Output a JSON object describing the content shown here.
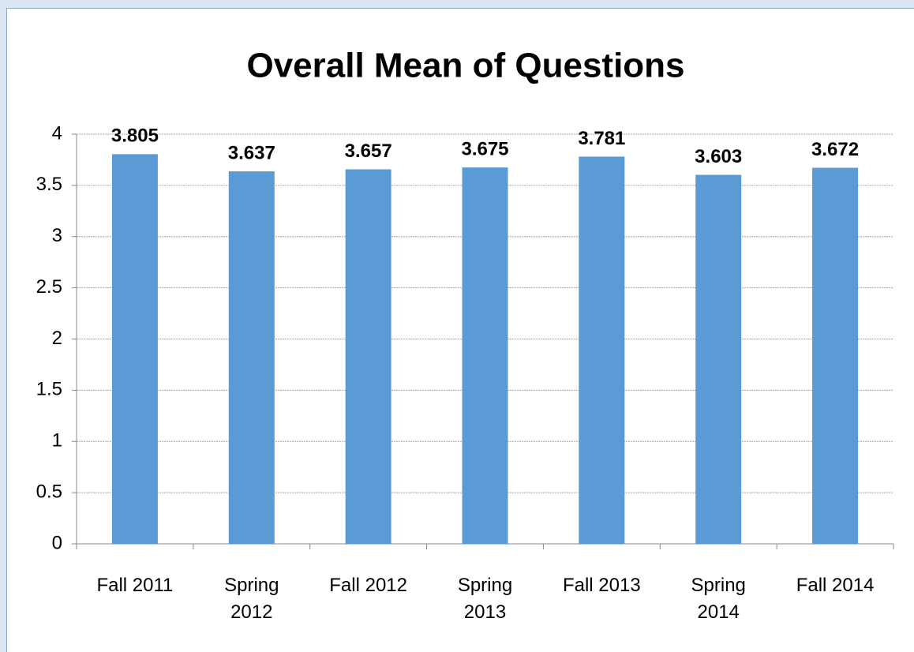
{
  "chart_data": {
    "type": "bar",
    "title": "Overall Mean of Questions",
    "categories": [
      "Fall 2011",
      "Spring 2012",
      "Fall 2012",
      "Spring 2013",
      "Fall 2013",
      "Spring 2014",
      "Fall 2014"
    ],
    "values": [
      3.805,
      3.637,
      3.657,
      3.675,
      3.781,
      3.603,
      3.672
    ],
    "color": "#5b9bd5",
    "ylim": [
      0,
      4
    ],
    "yticks": [
      0,
      0.5,
      1,
      1.5,
      2,
      2.5,
      3,
      3.5,
      4
    ],
    "grid": true
  }
}
